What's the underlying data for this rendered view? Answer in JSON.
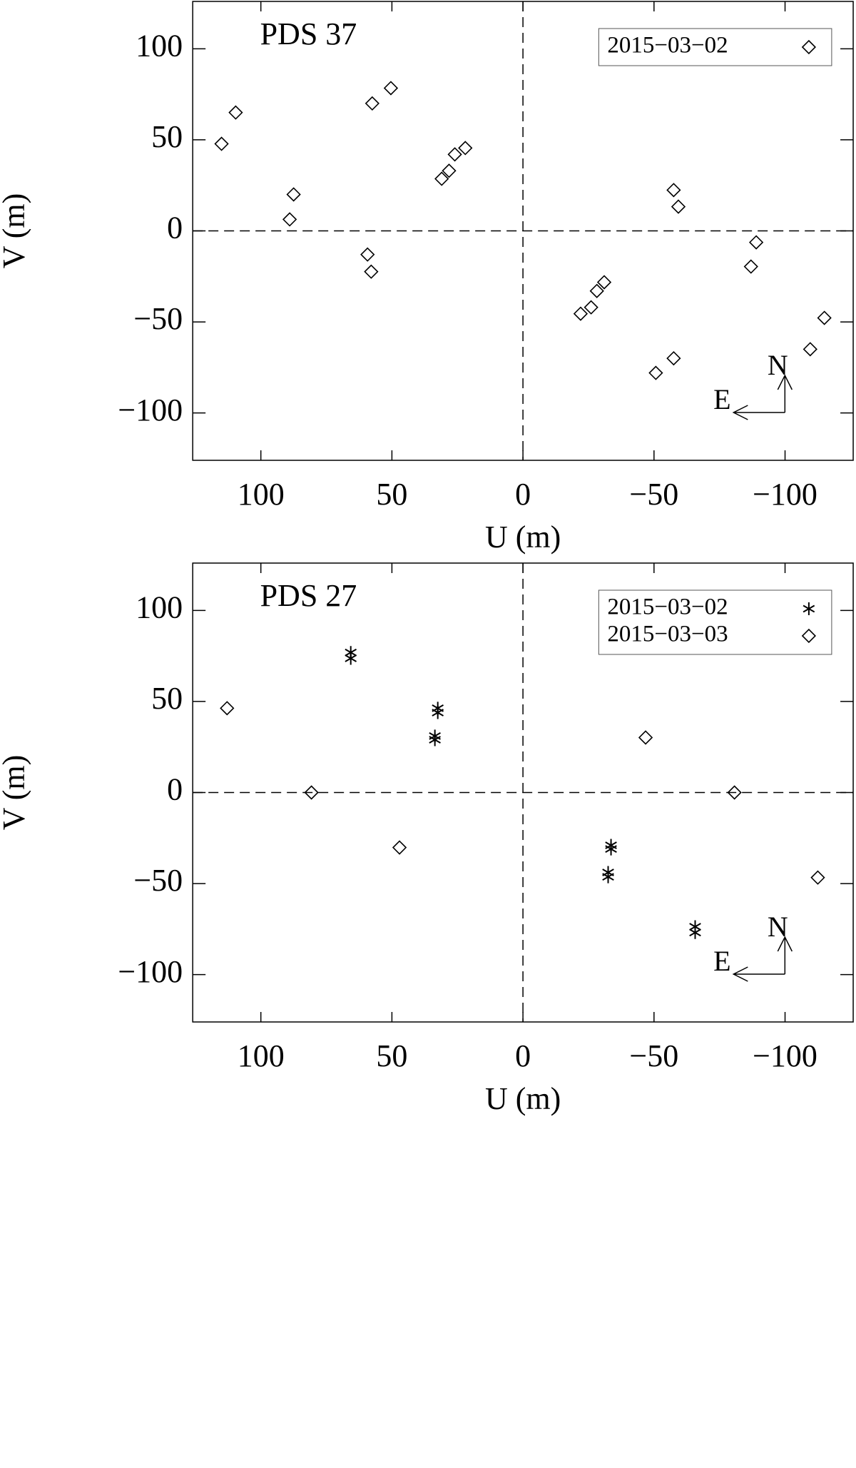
{
  "chart_data": [
    {
      "type": "scatter",
      "title": "PDS 37",
      "x_label": "U (m)",
      "y_label": "V (m)",
      "xlim": [
        126,
        -126
      ],
      "ylim": [
        -126,
        126
      ],
      "xticks": [
        100,
        50,
        0,
        {
          "value": -50,
          "label": "−50"
        },
        {
          "value": -100,
          "label": "−100"
        }
      ],
      "yticks": [
        {
          "value": -100,
          "label": "−100"
        },
        {
          "value": -50,
          "label": "−50"
        },
        0,
        50,
        100
      ],
      "compass": {
        "north": "N",
        "east": "E"
      },
      "legend": "upper right",
      "series": [
        {
          "name": "2015−03−02",
          "color": "#000000",
          "marker": "diamond",
          "x": [
            115,
            109.6,
            87.5,
            89,
            57.5,
            50.4,
            59.3,
            57.9,
            31,
            28.2,
            26,
            22,
            -57.5,
            -59.3,
            -89,
            -87,
            -31,
            -28.2,
            -26,
            -22,
            -50.7,
            -57.5,
            -109.6,
            -115
          ],
          "values": [
            47.8,
            65,
            20,
            6.3,
            70,
            78.4,
            -13,
            -22.4,
            28.6,
            33,
            42,
            45.5,
            22.4,
            13.3,
            -6.3,
            -19.6,
            -28.2,
            -33,
            -42,
            -45.5,
            -78,
            -70,
            -65,
            -47.8
          ]
        }
      ]
    },
    {
      "type": "scatter",
      "title": "PDS 27",
      "x_label": "U (m)",
      "y_label": "V (m)",
      "xlim": [
        126,
        -126
      ],
      "ylim": [
        -126,
        126
      ],
      "xticks": [
        100,
        50,
        0,
        {
          "value": -50,
          "label": "−50"
        },
        {
          "value": -100,
          "label": "−100"
        }
      ],
      "yticks": [
        {
          "value": -100,
          "label": "−100"
        },
        {
          "value": -50,
          "label": "−50"
        },
        0,
        50,
        100
      ],
      "compass": {
        "north": "N",
        "east": "E"
      },
      "legend": "upper right",
      "series": [
        {
          "name": "2015−03−02",
          "color": "#000000",
          "marker": "asterisk",
          "x": [
            65.7,
            65.7,
            32.5,
            32.5,
            33.6,
            33.6,
            -33.6,
            -33.6,
            -32.5,
            -32.5,
            -65.7,
            -65.7
          ],
          "values": [
            76.9,
            73.7,
            46.3,
            43.9,
            31,
            29,
            -29,
            -31,
            -43.9,
            -46.3,
            -73.7,
            -76.9
          ]
        },
        {
          "name": "2015−03−03",
          "color": "#000000",
          "marker": "diamond",
          "x": [
            112.9,
            80.7,
            47.1,
            -46.8,
            -80.7,
            -112.5
          ],
          "values": [
            46.3,
            0,
            -30.2,
            30.2,
            0,
            -46.7
          ]
        }
      ]
    }
  ]
}
